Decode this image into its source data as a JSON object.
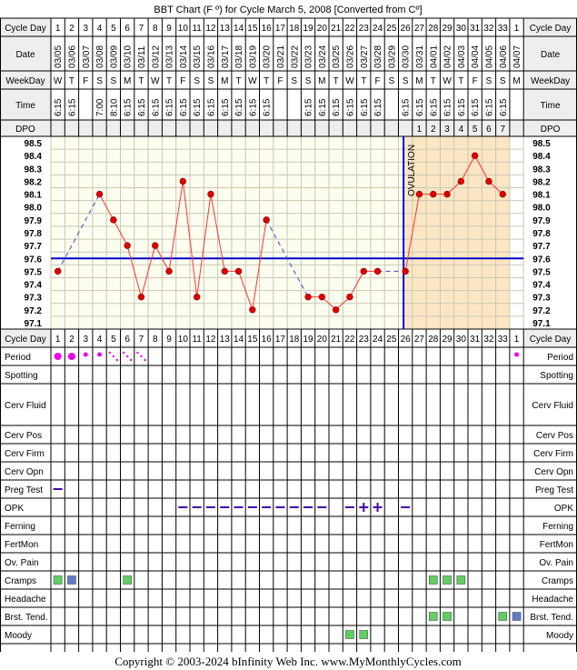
{
  "title": "BBT Chart (F º) for Cycle March 5, 2008  [Converted from Cº]",
  "footer": "Copyright © 2003-2024 bInfinity Web Inc.     www.MyMonthlyCycles.com",
  "labels": {
    "cycle_day": "Cycle Day",
    "date": "Date",
    "weekday": "WeekDay",
    "time": "Time",
    "dpo": "DPO",
    "ovulation": "OVULATION"
  },
  "colors": {
    "temp_line": "#ff3333",
    "temp_dot": "#e00000",
    "coverline": "#0000cc",
    "ovulation_line": "#0000cc",
    "luteal_fill": "#fde6c4",
    "follicular_fill": "#fdfdf0",
    "grid": "#c9c9b5",
    "label_fill": "#eeeeee",
    "period": "#ee00ee",
    "symptom_green": "#66cc66",
    "symptom_blue": "#6677cc",
    "test_mark": "#4400aa"
  },
  "columns": [
    {
      "cd": "1",
      "date": "03/05",
      "wd": "W",
      "time": "6:15"
    },
    {
      "cd": "2",
      "date": "03/06",
      "wd": "T",
      "time": "6:15"
    },
    {
      "cd": "3",
      "date": "03/07",
      "wd": "F",
      "time": ""
    },
    {
      "cd": "4",
      "date": "03/08",
      "wd": "S",
      "time": "7:00"
    },
    {
      "cd": "5",
      "date": "03/09",
      "wd": "S",
      "time": "8:10"
    },
    {
      "cd": "6",
      "date": "03/10",
      "wd": "M",
      "time": "6:15"
    },
    {
      "cd": "7",
      "date": "03/11",
      "wd": "T",
      "time": "6:15"
    },
    {
      "cd": "8",
      "date": "03/12",
      "wd": "W",
      "time": "6:15"
    },
    {
      "cd": "9",
      "date": "03/13",
      "wd": "T",
      "time": "6:15"
    },
    {
      "cd": "10",
      "date": "03/14",
      "wd": "F",
      "time": "6:15"
    },
    {
      "cd": "11",
      "date": "03/15",
      "wd": "S",
      "time": "6:15"
    },
    {
      "cd": "12",
      "date": "03/16",
      "wd": "S",
      "time": "6:15"
    },
    {
      "cd": "13",
      "date": "03/17",
      "wd": "M",
      "time": "6:15"
    },
    {
      "cd": "14",
      "date": "03/18",
      "wd": "T",
      "time": "6:15"
    },
    {
      "cd": "15",
      "date": "03/19",
      "wd": "W",
      "time": "6:15"
    },
    {
      "cd": "16",
      "date": "03/20",
      "wd": "T",
      "time": "6:15"
    },
    {
      "cd": "17",
      "date": "03/21",
      "wd": "F",
      "time": ""
    },
    {
      "cd": "18",
      "date": "03/22",
      "wd": "S",
      "time": ""
    },
    {
      "cd": "19",
      "date": "03/23",
      "wd": "S",
      "time": "6:15"
    },
    {
      "cd": "20",
      "date": "03/24",
      "wd": "M",
      "time": "6:15"
    },
    {
      "cd": "21",
      "date": "03/25",
      "wd": "T",
      "time": "6:15"
    },
    {
      "cd": "22",
      "date": "03/26",
      "wd": "W",
      "time": "6:15"
    },
    {
      "cd": "23",
      "date": "03/27",
      "wd": "T",
      "time": "6:15"
    },
    {
      "cd": "24",
      "date": "03/28",
      "wd": "F",
      "time": "6:15"
    },
    {
      "cd": "25",
      "date": "03/29",
      "wd": "S",
      "time": ""
    },
    {
      "cd": "26",
      "date": "03/30",
      "wd": "S",
      "time": "6:15"
    },
    {
      "cd": "27",
      "date": "03/31",
      "wd": "M",
      "time": "6:15"
    },
    {
      "cd": "28",
      "date": "04/01",
      "wd": "T",
      "time": "6:15"
    },
    {
      "cd": "29",
      "date": "04/02",
      "wd": "W",
      "time": "6:15"
    },
    {
      "cd": "30",
      "date": "04/03",
      "wd": "T",
      "time": "6:15"
    },
    {
      "cd": "31",
      "date": "04/04",
      "wd": "F",
      "time": "6:15"
    },
    {
      "cd": "32",
      "date": "04/05",
      "wd": "S",
      "time": "6:15"
    },
    {
      "cd": "33",
      "date": "04/06",
      "wd": "S",
      "time": "6:15"
    },
    {
      "cd": "1",
      "date": "04/07",
      "wd": "M",
      "time": ""
    }
  ],
  "dpo": [
    "",
    "",
    "",
    "",
    "",
    "",
    "",
    "",
    "",
    "",
    "",
    "",
    "",
    "",
    "",
    "",
    "",
    "",
    "",
    "",
    "",
    "",
    "",
    "",
    "",
    "",
    "1",
    "2",
    "3",
    "4",
    "5",
    "6",
    "7",
    ""
  ],
  "chart_data": {
    "type": "line",
    "x": [
      1,
      2,
      3,
      4,
      5,
      6,
      7,
      8,
      9,
      10,
      11,
      12,
      13,
      14,
      15,
      16,
      17,
      18,
      19,
      20,
      21,
      22,
      23,
      24,
      25,
      26,
      27,
      28,
      29,
      30,
      31,
      32,
      33
    ],
    "y": [
      97.5,
      null,
      null,
      98.1,
      97.9,
      97.7,
      97.3,
      97.7,
      97.5,
      98.2,
      97.3,
      98.1,
      97.5,
      97.5,
      97.2,
      97.9,
      null,
      null,
      97.3,
      97.3,
      97.2,
      97.3,
      97.5,
      97.5,
      null,
      97.5,
      98.1,
      98.1,
      98.1,
      98.2,
      98.4,
      98.2,
      98.1
    ],
    "y_ticks": [
      "98.5",
      "98.4",
      "98.3",
      "98.2",
      "98.1",
      "98.0",
      "97.9",
      "97.8",
      "97.7",
      "97.6",
      "97.5",
      "97.4",
      "97.3",
      "97.2",
      "97.1"
    ],
    "ylim": [
      97.1,
      98.5
    ],
    "coverline": 97.6,
    "ovulation_day": 26,
    "grid": true
  },
  "symptom_rows": [
    {
      "label": "Period"
    },
    {
      "label": "Spotting"
    },
    {
      "label": "Cerv Fluid"
    },
    {
      "label": "Cerv Pos"
    },
    {
      "label": "Cerv Firm"
    },
    {
      "label": "Cerv Opn"
    },
    {
      "label": "Preg Test"
    },
    {
      "label": "OPK"
    },
    {
      "label": "Ferning"
    },
    {
      "label": "FertMon"
    },
    {
      "label": "Ov. Pain"
    },
    {
      "label": "Cramps"
    },
    {
      "label": "Headache"
    },
    {
      "label": "Brst. Tend."
    },
    {
      "label": "Moody"
    }
  ],
  "period": [
    {
      "day": 1,
      "flow": "heavy"
    },
    {
      "day": 2,
      "flow": "heavy"
    },
    {
      "day": 3,
      "flow": "medium"
    },
    {
      "day": 4,
      "flow": "medium"
    },
    {
      "day": 5,
      "flow": "light"
    },
    {
      "day": 6,
      "flow": "light"
    },
    {
      "day": 7,
      "flow": "light"
    },
    {
      "day": 34,
      "flow": "medium"
    }
  ],
  "preg_test": [
    {
      "day": 1,
      "result": "negative"
    }
  ],
  "opk": [
    {
      "day": 10,
      "result": "negative"
    },
    {
      "day": 11,
      "result": "negative"
    },
    {
      "day": 12,
      "result": "negative"
    },
    {
      "day": 13,
      "result": "negative"
    },
    {
      "day": 14,
      "result": "negative"
    },
    {
      "day": 15,
      "result": "negative"
    },
    {
      "day": 16,
      "result": "negative"
    },
    {
      "day": 17,
      "result": "negative"
    },
    {
      "day": 18,
      "result": "negative"
    },
    {
      "day": 19,
      "result": "negative"
    },
    {
      "day": 20,
      "result": "negative"
    },
    {
      "day": 22,
      "result": "negative"
    },
    {
      "day": 23,
      "result": "positive"
    },
    {
      "day": 24,
      "result": "positive"
    },
    {
      "day": 26,
      "result": "negative"
    }
  ],
  "cramps": [
    {
      "day": 1,
      "color": "green"
    },
    {
      "day": 2,
      "color": "blue"
    },
    {
      "day": 6,
      "color": "green"
    },
    {
      "day": 28,
      "color": "green"
    },
    {
      "day": 29,
      "color": "green"
    },
    {
      "day": 30,
      "color": "green"
    }
  ],
  "breast_tenderness": [
    {
      "day": 28,
      "color": "green"
    },
    {
      "day": 29,
      "color": "green"
    },
    {
      "day": 33,
      "color": "green"
    },
    {
      "day": 34,
      "color": "blue"
    }
  ],
  "moody": [
    {
      "day": 22,
      "color": "green"
    },
    {
      "day": 23,
      "color": "green"
    }
  ]
}
